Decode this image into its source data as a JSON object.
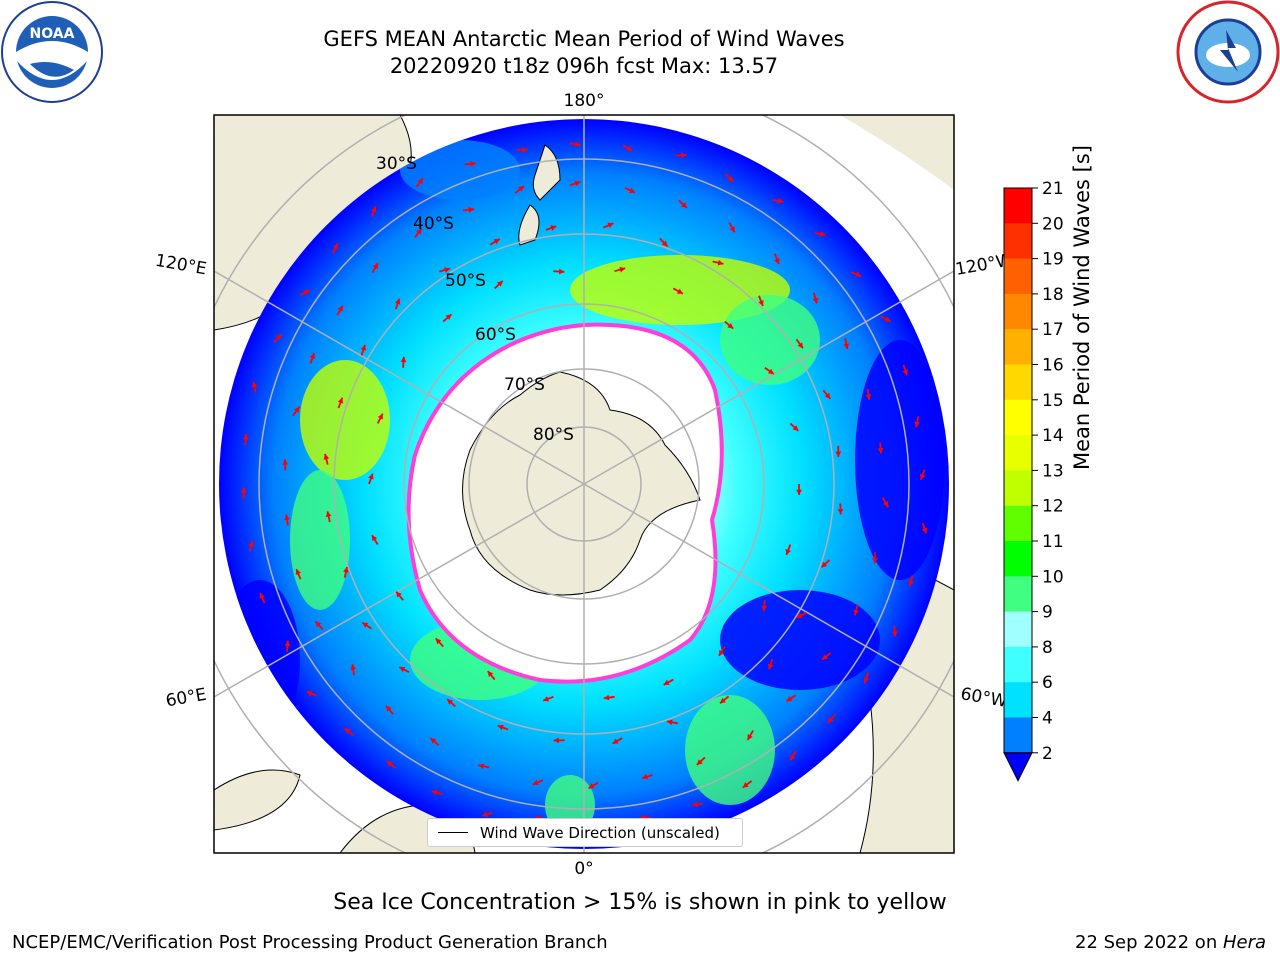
{
  "title": "GEFS MEAN Antarctic Mean Period of Wind Waves",
  "subtitle": "20220920 t18z 096h fcst   Max: 13.57",
  "logos": {
    "left": "NOAA",
    "right": "NATIONAL WEATHER SERVICE"
  },
  "map": {
    "projection": "south-polar-stereographic",
    "lon_labels": {
      "top": "180°",
      "bottom": "0°",
      "left_upper": "120°E",
      "left_lower": "60°E",
      "right_upper": "120°W",
      "right_lower": "60°W"
    },
    "lat_labels": [
      "30°S",
      "40°S",
      "50°S",
      "60°S",
      "70°S",
      "80°S"
    ],
    "colors": {
      "land": "#efebd9",
      "grid": "#b0b0b0",
      "ice_edge": "#ff3dd8",
      "ice_fill": "#ffffff",
      "vector": "#ff0000"
    }
  },
  "legend": {
    "label": "Wind Wave Direction (unscaled)"
  },
  "colorbar": {
    "title": "Mean Period of Wind Waves [s]",
    "ticks": [
      "2",
      "4",
      "6",
      "8",
      "9",
      "10",
      "11",
      "12",
      "13",
      "14",
      "15",
      "16",
      "17",
      "18",
      "19",
      "20",
      "21"
    ],
    "colors": [
      "#0000ff",
      "#0080ff",
      "#00e0ff",
      "#40ffff",
      "#a0ffff",
      "#40ff80",
      "#00ff00",
      "#60ff00",
      "#c0ff00",
      "#e8ff00",
      "#ffff00",
      "#ffd800",
      "#ffb000",
      "#ff8800",
      "#ff6000",
      "#ff3000",
      "#ff0000"
    ],
    "extend": "min"
  },
  "caption": "Sea Ice Concentration > 15% is shown in pink to yellow",
  "footer": {
    "left": "NCEP/EMC/Verification Post Processing Product Generation Branch",
    "date": "22 Sep 2022 on ",
    "host": "Hera"
  }
}
